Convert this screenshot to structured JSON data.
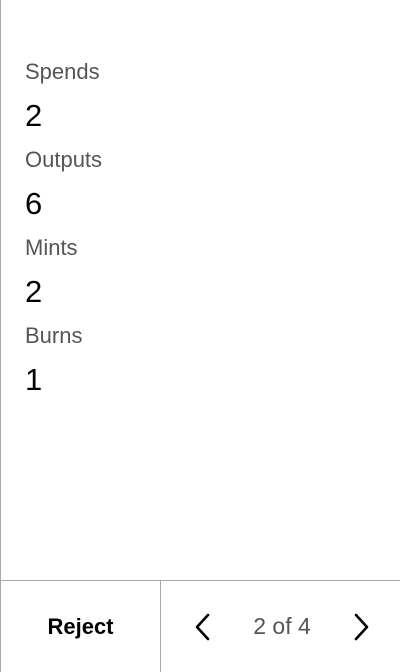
{
  "stats": [
    {
      "label": "Spends",
      "value": "2"
    },
    {
      "label": "Outputs",
      "value": "6"
    },
    {
      "label": "Mints",
      "value": "2"
    },
    {
      "label": "Burns",
      "value": "1"
    }
  ],
  "footer": {
    "reject_label": "Reject",
    "pagination": "2 of 4",
    "prev_icon": "chevron-left-icon",
    "next_icon": "chevron-right-icon"
  }
}
